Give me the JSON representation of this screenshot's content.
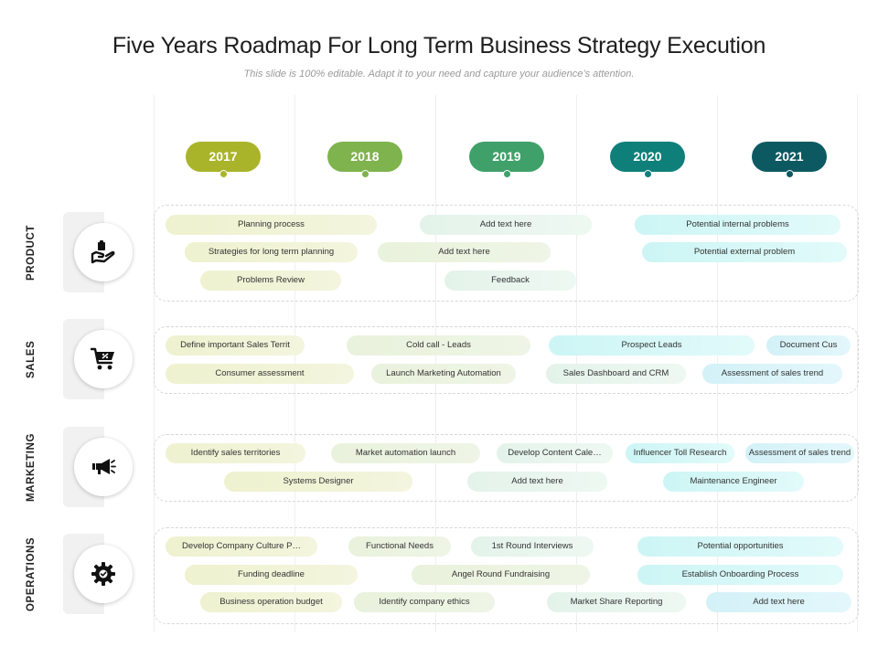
{
  "header": {
    "title": "Five Years Roadmap For Long Term Business Strategy Execution",
    "subtitle": "This slide is 100% editable. Adapt it to your need and capture your audience’s attention."
  },
  "years": [
    {
      "label": "2017",
      "color": "#a9b42a"
    },
    {
      "label": "2018",
      "color": "#7fb34e"
    },
    {
      "label": "2019",
      "color": "#3fa06a"
    },
    {
      "label": "2020",
      "color": "#0f7f7a"
    },
    {
      "label": "2021",
      "color": "#0d5962"
    }
  ],
  "categories": [
    {
      "label": "PRODUCT",
      "icon": "hand-box-icon",
      "items": [
        "Planning process",
        "Add text here",
        "Potential internal problems",
        "Strategies for long term planning",
        "Add text here",
        "Potential external problem",
        "Problems Review",
        "Feedback"
      ]
    },
    {
      "label": "SALES",
      "icon": "shopping-cart-icon",
      "items": [
        "Define important Sales Territ",
        "Cold call - Leads",
        "Prospect Leads",
        "Document Cus",
        "Consumer assessment",
        "Launch Marketing Automation",
        "Sales Dashboard and CRM",
        "Assessment of sales trend"
      ]
    },
    {
      "label": "MARKETING",
      "icon": "megaphone-icon",
      "items": [
        "Identify sales territories",
        "Market automation launch",
        "Develop Content Cale…",
        "Influencer Toll Research",
        "Assessment of sales trend",
        "Systems Designer",
        "Add text here",
        "Maintenance Engineer"
      ]
    },
    {
      "label": "OPERATIONS",
      "icon": "gear-icon",
      "items": [
        "Develop Company Culture P…",
        "Functional Needs",
        "1st Round Interviews",
        "Potential opportunities",
        "Funding deadline",
        "Angel Round Fundraising",
        "Establish Onboarding  Process",
        "Business operation budget",
        "Identify company ethics",
        "Market Share Reporting",
        "Add text here"
      ]
    }
  ]
}
